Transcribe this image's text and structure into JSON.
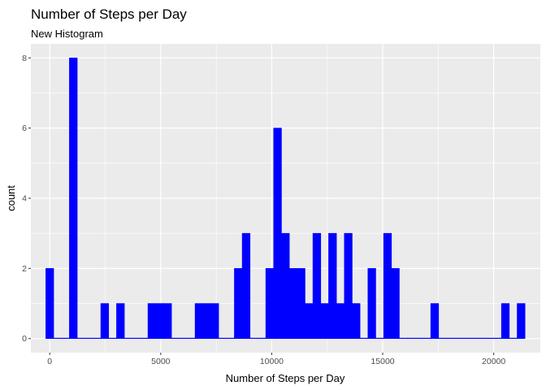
{
  "chart_data": {
    "type": "bar",
    "title": "Number of Steps per Day",
    "subtitle": "New Histogram",
    "xlabel": "Number of Steps per Day",
    "ylabel": "count",
    "bin_width": 353.9,
    "bin_centers": [
      0,
      353.9,
      707.8,
      1061.7,
      1415.6,
      1769.5,
      2123.4,
      2477.3,
      2831.2,
      3185.1,
      3539,
      3892.9,
      4246.8,
      4600.7,
      4954.6,
      5308.5,
      5662.4,
      6016.3,
      6370.2,
      6724.1,
      7078,
      7431.9,
      7785.8,
      8139.7,
      8493.6,
      8847.5,
      9201.4,
      9555.3,
      9909.2,
      10263.1,
      10617,
      10970.9,
      11324.8,
      11678.7,
      12032.6,
      12386.5,
      12740.4,
      13094.3,
      13448.2,
      13802.1,
      14156,
      14509.9,
      14863.8,
      15217.7,
      15571.6,
      15925.5,
      16279.4,
      16633.3,
      16987.2,
      17341.1,
      17695,
      18048.9,
      18402.8,
      18756.7,
      19110.6,
      19464.5,
      19818.4,
      20172.3,
      20526.2,
      20880.1,
      21234
    ],
    "counts": [
      2,
      0,
      0,
      8,
      0,
      0,
      0,
      1,
      0,
      1,
      0,
      0,
      0,
      1,
      1,
      1,
      0,
      0,
      0,
      1,
      1,
      1,
      0,
      0,
      2,
      3,
      0,
      0,
      2,
      6,
      3,
      2,
      2,
      1,
      3,
      1,
      3,
      1,
      3,
      1,
      0,
      2,
      0,
      3,
      2,
      0,
      0,
      0,
      0,
      1,
      0,
      0,
      0,
      0,
      0,
      0,
      0,
      0,
      1,
      0,
      1
    ],
    "xlim": [
      -850,
      22100
    ],
    "ylim": [
      -0.4,
      8.4
    ],
    "x_ticks": [
      0,
      5000,
      10000,
      15000,
      20000
    ],
    "x_tick_labels": [
      "0",
      "5000",
      "10000",
      "15000",
      "20000"
    ],
    "y_ticks": [
      0,
      2,
      4,
      6,
      8
    ],
    "y_tick_labels": [
      "0",
      "2",
      "4",
      "6",
      "8"
    ],
    "grid": true,
    "colors": {
      "bar": "#0000ff",
      "panel": "#ebebeb",
      "grid": "#ffffff"
    }
  }
}
